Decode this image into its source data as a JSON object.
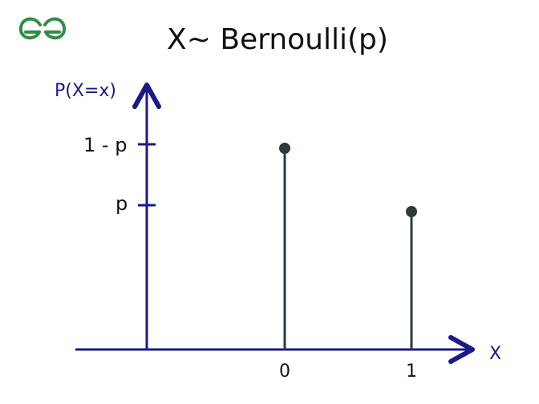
{
  "logo": {
    "alt": "GfG"
  },
  "diagram": {
    "title": "X~ Bernoulli(p)",
    "y_axis_label": "P(X=x)",
    "x_axis_label": "X",
    "y_ticks": [
      {
        "label": "1 - p"
      },
      {
        "label": "p"
      }
    ],
    "x_ticks": [
      {
        "label": "0"
      },
      {
        "label": "1"
      }
    ],
    "stems": [
      {
        "x": "0",
        "prob": "1 - p"
      },
      {
        "x": "1",
        "prob": "p"
      }
    ],
    "colors": {
      "axis": "#1a1a86",
      "stem": "#2f3a3d",
      "logo": "#2f8d46",
      "text": "#111111"
    }
  }
}
